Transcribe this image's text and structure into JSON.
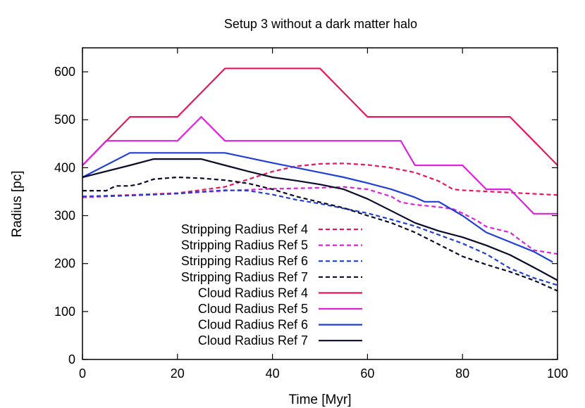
{
  "chart_data": {
    "type": "line",
    "title": "Setup 3 without a dark matter halo",
    "xlabel": "Time [Myr]",
    "ylabel": "Radius [pc]",
    "xlim": [
      0,
      100
    ],
    "ylim": [
      0,
      650
    ],
    "xticks": [
      "0",
      "20",
      "40",
      "60",
      "80",
      "100"
    ],
    "yticks": [
      "0",
      "100",
      "200",
      "300",
      "400",
      "500",
      "600"
    ],
    "grid": false,
    "legend_position": "bottom-left",
    "series": [
      {
        "name": "Stripping Radius Ref 4",
        "style": "dashed",
        "color": "#e8175d",
        "x": [
          0,
          10,
          20,
          30,
          40,
          45,
          50,
          55,
          60,
          65,
          70,
          75,
          78,
          80,
          90,
          100
        ],
        "y": [
          340,
          343,
          347,
          360,
          392,
          403,
          408,
          409,
          406,
          400,
          390,
          372,
          355,
          353,
          348,
          343
        ]
      },
      {
        "name": "Stripping Radius Ref 5",
        "style": "dashed",
        "color": "#dd22dd",
        "x": [
          0,
          10,
          20,
          30,
          40,
          50,
          55,
          60,
          65,
          67,
          70,
          75,
          78,
          80,
          83,
          85,
          90,
          92,
          95,
          100
        ],
        "y": [
          338,
          342,
          346,
          352,
          356,
          358,
          360,
          355,
          340,
          328,
          323,
          318,
          314,
          305,
          290,
          277,
          265,
          250,
          228,
          220
        ]
      },
      {
        "name": "Stripping Radius Ref 6",
        "style": "dashed",
        "color": "#1f3fd6",
        "x": [
          0,
          10,
          20,
          25,
          30,
          35,
          40,
          45,
          50,
          55,
          60,
          65,
          70,
          75,
          80,
          85,
          90,
          95,
          100
        ],
        "y": [
          340,
          342,
          346,
          350,
          353,
          352,
          344,
          333,
          325,
          315,
          305,
          292,
          278,
          260,
          242,
          220,
          190,
          170,
          155
        ]
      },
      {
        "name": "Stripping Radius Ref 7",
        "style": "dashed",
        "color": "#0a0a2a",
        "x": [
          0,
          5,
          7,
          10,
          12,
          15,
          20,
          25,
          30,
          35,
          40,
          45,
          50,
          55,
          60,
          65,
          70,
          75,
          80,
          85,
          90,
          95,
          100
        ],
        "y": [
          352,
          352,
          362,
          362,
          366,
          376,
          380,
          378,
          374,
          367,
          355,
          340,
          328,
          316,
          300,
          285,
          265,
          240,
          215,
          198,
          183,
          165,
          143
        ]
      },
      {
        "name": "Cloud Radius Ref 4",
        "style": "solid",
        "color": "#e8175d",
        "x": [
          0,
          10,
          20,
          30,
          40,
          50,
          60,
          70,
          80,
          90,
          100
        ],
        "y": [
          405,
          506,
          506,
          607,
          607,
          607,
          506,
          506,
          506,
          506,
          405
        ]
      },
      {
        "name": "Cloud Radius Ref 5",
        "style": "solid",
        "color": "#dd22dd",
        "x": [
          0,
          5,
          10,
          20,
          25,
          30,
          40,
          50,
          60,
          67,
          70,
          75,
          80,
          85,
          90,
          95,
          100
        ],
        "y": [
          405,
          456,
          456,
          456,
          506,
          456,
          456,
          456,
          456,
          456,
          405,
          405,
          405,
          355,
          355,
          304,
          304
        ]
      },
      {
        "name": "Cloud Radius Ref 6",
        "style": "solid",
        "color": "#1f3fd6",
        "x": [
          0,
          10,
          20,
          30,
          40,
          50,
          55,
          60,
          65,
          70,
          72,
          75,
          80,
          85,
          90,
          95,
          99
        ],
        "y": [
          380,
          431,
          431,
          431,
          410,
          390,
          380,
          368,
          355,
          338,
          329,
          329,
          300,
          265,
          245,
          225,
          203
        ]
      },
      {
        "name": "Cloud Radius Ref 7",
        "style": "solid",
        "color": "#0a0a2a",
        "x": [
          0,
          10,
          15,
          20,
          25,
          30,
          35,
          40,
          45,
          50,
          55,
          60,
          65,
          70,
          75,
          80,
          85,
          90,
          95,
          100
        ],
        "y": [
          380,
          405,
          418,
          418,
          418,
          405,
          392,
          380,
          373,
          365,
          355,
          335,
          310,
          285,
          268,
          255,
          238,
          218,
          192,
          165
        ]
      }
    ]
  }
}
